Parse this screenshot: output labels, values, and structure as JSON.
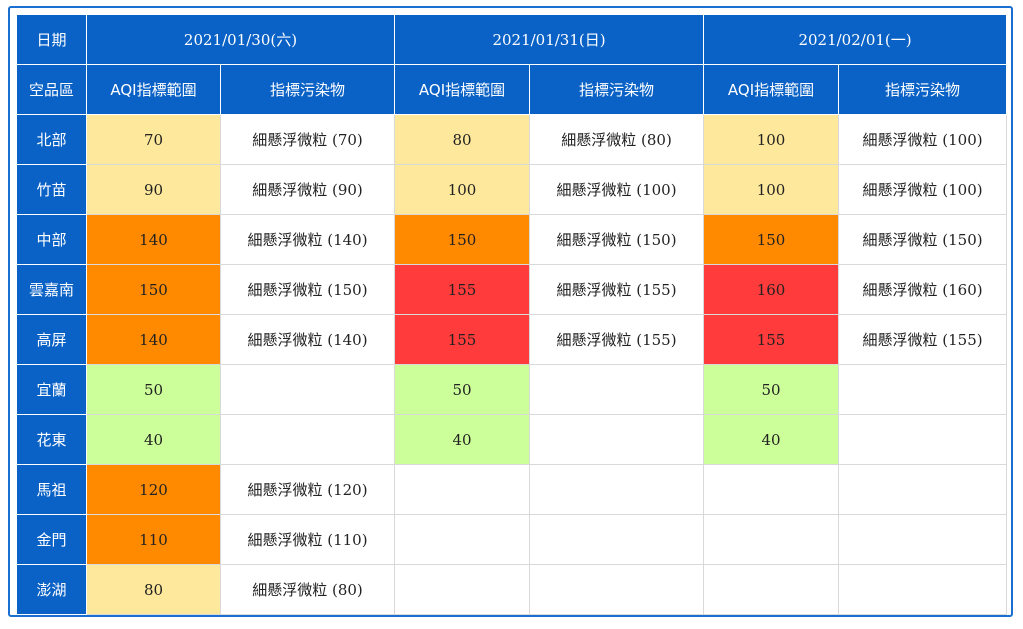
{
  "header": {
    "date_label": "日期",
    "region_label": "空品區",
    "aqi_label": "AQI指標範圍",
    "pollutant_label": "指標污染物",
    "dates": [
      "2021/01/30(六)",
      "2021/01/31(日)",
      "2021/02/01(一)"
    ]
  },
  "colors": {
    "good": "#ccff99",
    "moderate": "#fde89b",
    "unhealthy_sensitive": "#ff8a00",
    "unhealthy": "#ff3b3b",
    "header": "#0b62c6"
  },
  "rows": [
    {
      "region": "北部",
      "days": [
        {
          "aqi": "70",
          "level": "yellow",
          "pollutant": "細懸浮微粒 (70)"
        },
        {
          "aqi": "80",
          "level": "yellow",
          "pollutant": "細懸浮微粒 (80)"
        },
        {
          "aqi": "100",
          "level": "yellow",
          "pollutant": "細懸浮微粒 (100)"
        }
      ]
    },
    {
      "region": "竹苗",
      "days": [
        {
          "aqi": "90",
          "level": "yellow",
          "pollutant": "細懸浮微粒 (90)"
        },
        {
          "aqi": "100",
          "level": "yellow",
          "pollutant": "細懸浮微粒 (100)"
        },
        {
          "aqi": "100",
          "level": "yellow",
          "pollutant": "細懸浮微粒 (100)"
        }
      ]
    },
    {
      "region": "中部",
      "days": [
        {
          "aqi": "140",
          "level": "orange",
          "pollutant": "細懸浮微粒 (140)"
        },
        {
          "aqi": "150",
          "level": "orange",
          "pollutant": "細懸浮微粒 (150)"
        },
        {
          "aqi": "150",
          "level": "orange",
          "pollutant": "細懸浮微粒 (150)"
        }
      ]
    },
    {
      "region": "雲嘉南",
      "days": [
        {
          "aqi": "150",
          "level": "orange",
          "pollutant": "細懸浮微粒 (150)"
        },
        {
          "aqi": "155",
          "level": "red",
          "pollutant": "細懸浮微粒 (155)"
        },
        {
          "aqi": "160",
          "level": "red",
          "pollutant": "細懸浮微粒 (160)"
        }
      ]
    },
    {
      "region": "高屏",
      "days": [
        {
          "aqi": "140",
          "level": "orange",
          "pollutant": "細懸浮微粒 (140)"
        },
        {
          "aqi": "155",
          "level": "red",
          "pollutant": "細懸浮微粒 (155)"
        },
        {
          "aqi": "155",
          "level": "red",
          "pollutant": "細懸浮微粒 (155)"
        }
      ]
    },
    {
      "region": "宜蘭",
      "days": [
        {
          "aqi": "50",
          "level": "green",
          "pollutant": ""
        },
        {
          "aqi": "50",
          "level": "green",
          "pollutant": ""
        },
        {
          "aqi": "50",
          "level": "green",
          "pollutant": ""
        }
      ]
    },
    {
      "region": "花東",
      "days": [
        {
          "aqi": "40",
          "level": "green",
          "pollutant": ""
        },
        {
          "aqi": "40",
          "level": "green",
          "pollutant": ""
        },
        {
          "aqi": "40",
          "level": "green",
          "pollutant": ""
        }
      ]
    },
    {
      "region": "馬祖",
      "days": [
        {
          "aqi": "120",
          "level": "orange",
          "pollutant": "細懸浮微粒 (120)"
        },
        {
          "aqi": "",
          "level": "none",
          "pollutant": ""
        },
        {
          "aqi": "",
          "level": "none",
          "pollutant": ""
        }
      ]
    },
    {
      "region": "金門",
      "days": [
        {
          "aqi": "110",
          "level": "orange",
          "pollutant": "細懸浮微粒 (110)"
        },
        {
          "aqi": "",
          "level": "none",
          "pollutant": ""
        },
        {
          "aqi": "",
          "level": "none",
          "pollutant": ""
        }
      ]
    },
    {
      "region": "澎湖",
      "days": [
        {
          "aqi": "80",
          "level": "yellow",
          "pollutant": "細懸浮微粒 (80)"
        },
        {
          "aqi": "",
          "level": "none",
          "pollutant": ""
        },
        {
          "aqi": "",
          "level": "none",
          "pollutant": ""
        }
      ]
    }
  ]
}
